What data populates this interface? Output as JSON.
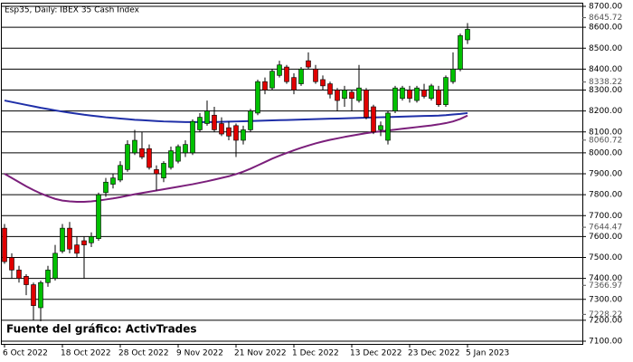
{
  "chart_data": {
    "type": "candlestick",
    "title": "Esp35, Daily:  IBEX 35 Cash Index",
    "annotation": "Fuente del gráfico: ActivTrades",
    "categories": [
      "6 Oct 2022",
      null,
      null,
      null,
      null,
      null,
      null,
      null,
      "18 Oct 2022",
      null,
      null,
      null,
      null,
      null,
      null,
      null,
      "28 Oct 2022",
      null,
      null,
      null,
      null,
      null,
      null,
      null,
      "9 Nov 2022",
      null,
      null,
      null,
      null,
      null,
      null,
      null,
      "21 Nov 2022",
      null,
      null,
      null,
      null,
      null,
      null,
      null,
      "1 Dec 2022",
      null,
      null,
      null,
      null,
      null,
      null,
      null,
      "13 Dec 2022",
      null,
      null,
      null,
      null,
      null,
      null,
      null,
      "23 Dec 2022",
      null,
      null,
      null,
      null,
      null,
      null,
      null,
      "5 Jan 2023"
    ],
    "open": [
      7640,
      7500,
      7440,
      7410,
      7370,
      7260,
      7380,
      7400,
      7530,
      7640,
      7560,
      7580,
      7570,
      7590,
      7810,
      7850,
      7870,
      7920,
      8000,
      8020,
      8020,
      7920,
      7880,
      7930,
      7960,
      8000,
      8000,
      8110,
      8140,
      8180,
      8140,
      8120,
      8130,
      8060,
      8110,
      8190,
      8340,
      8310,
      8370,
      8410,
      8360,
      8330,
      8440,
      8400,
      8350,
      8330,
      8300,
      8260,
      8290,
      8250,
      8300,
      8220,
      8110,
      8060,
      8200,
      8260,
      8300,
      8250,
      8300,
      8260,
      8300,
      8230,
      8340,
      8400,
      8540
    ],
    "high": [
      7660,
      7520,
      7460,
      7420,
      7380,
      7390,
      7460,
      7560,
      7660,
      7670,
      7600,
      7600,
      7620,
      7810,
      7880,
      7900,
      7960,
      8060,
      8110,
      8100,
      8040,
      7940,
      7960,
      8030,
      8040,
      8060,
      8160,
      8190,
      8250,
      8220,
      8170,
      8150,
      8140,
      8130,
      8210,
      8350,
      8360,
      8400,
      8440,
      8420,
      8380,
      8410,
      8480,
      8420,
      8370,
      8340,
      8310,
      8320,
      8300,
      8420,
      8310,
      8230,
      8150,
      8200,
      8320,
      8320,
      8320,
      8320,
      8330,
      8330,
      8320,
      8370,
      8480,
      8570,
      8620
    ],
    "low": [
      7470,
      7400,
      7380,
      7320,
      7200,
      7190,
      7360,
      7390,
      7520,
      7520,
      7500,
      7400,
      7550,
      7580,
      7790,
      7830,
      7860,
      7910,
      7990,
      7970,
      7920,
      7820,
      7860,
      7920,
      7950,
      7980,
      7990,
      8100,
      8130,
      8100,
      8080,
      8060,
      7980,
      8040,
      8100,
      8180,
      8280,
      8300,
      8360,
      8330,
      8280,
      8320,
      8400,
      8330,
      8300,
      8260,
      8200,
      8220,
      8200,
      8240,
      8160,
      8090,
      8080,
      8040,
      8190,
      8250,
      8240,
      8240,
      8260,
      8250,
      8220,
      8220,
      8330,
      8390,
      8520
    ],
    "close": [
      7480,
      7440,
      7400,
      7370,
      7270,
      7380,
      7440,
      7520,
      7640,
      7540,
      7520,
      7560,
      7600,
      7800,
      7860,
      7880,
      7940,
      8040,
      8060,
      7980,
      7930,
      7900,
      7950,
      8010,
      8030,
      8040,
      8150,
      8170,
      8200,
      8110,
      8090,
      8080,
      8060,
      8110,
      8200,
      8340,
      8300,
      8390,
      8420,
      8340,
      8300,
      8400,
      8410,
      8340,
      8320,
      8280,
      8250,
      8300,
      8260,
      8310,
      8170,
      8100,
      8130,
      8190,
      8310,
      8310,
      8260,
      8310,
      8270,
      8320,
      8230,
      8360,
      8400,
      8560,
      8590
    ],
    "up_color": "#00c000",
    "down_color": "#e00000",
    "lines": [
      {
        "color": "#1f2fa8",
        "values": [
          8250,
          8243,
          8236,
          8229,
          8222,
          8215,
          8209,
          8203,
          8197,
          8192,
          8187,
          8182,
          8178,
          8174,
          8170,
          8167,
          8164,
          8161,
          8158,
          8156,
          8154,
          8152,
          8150,
          8149,
          8148,
          8147,
          8147,
          8147,
          8147,
          8147,
          8148,
          8149,
          8150,
          8151,
          8152,
          8153,
          8154,
          8155,
          8156,
          8157,
          8158,
          8159,
          8160,
          8161,
          8162,
          8163,
          8164,
          8165,
          8166,
          8167,
          8168,
          8169,
          8170,
          8171,
          8172,
          8173,
          8174,
          8175,
          8176,
          8177,
          8178,
          8180,
          8183,
          8186,
          8190
        ]
      },
      {
        "color": "#7b1f7b",
        "values": [
          7900,
          7880,
          7860,
          7840,
          7822,
          7806,
          7792,
          7780,
          7772,
          7768,
          7766,
          7766,
          7768,
          7772,
          7777,
          7782,
          7788,
          7795,
          7802,
          7808,
          7814,
          7820,
          7826,
          7832,
          7838,
          7844,
          7850,
          7857,
          7864,
          7872,
          7880,
          7888,
          7898,
          7910,
          7924,
          7940,
          7956,
          7972,
          7986,
          7999,
          8012,
          8024,
          8035,
          8045,
          8054,
          8062,
          8069,
          8076,
          8082,
          8088,
          8094,
          8099,
          8103,
          8107,
          8111,
          8115,
          8119,
          8123,
          8127,
          8131,
          8136,
          8142,
          8150,
          8162,
          8178
        ]
      }
    ],
    "ylim": [
      7100,
      8700
    ],
    "yticks": [
      {
        "value": 8700,
        "label": "8700.00"
      },
      {
        "value": 8600,
        "label": "8600.00"
      },
      {
        "value": 8500,
        "label": "8500.00"
      },
      {
        "value": 8400,
        "label": "8400.00"
      },
      {
        "value": 8300,
        "label": "8300.00"
      },
      {
        "value": 8200,
        "label": "8200.00"
      },
      {
        "value": 8100,
        "label": "8100.00"
      },
      {
        "value": 8000,
        "label": "8000.00"
      },
      {
        "value": 7900,
        "label": "7900.00"
      },
      {
        "value": 7800,
        "label": "7800.00"
      },
      {
        "value": 7700,
        "label": "7700.00"
      },
      {
        "value": 7600,
        "label": "7600.00"
      },
      {
        "value": 7500,
        "label": "7500.00"
      },
      {
        "value": 7400,
        "label": "7400.00"
      },
      {
        "value": 7300,
        "label": "7300.00"
      },
      {
        "value": 7200,
        "label": "7200.00"
      },
      {
        "value": 7100,
        "label": "7100.00"
      }
    ],
    "price_levels": [
      8645.72,
      8338.22,
      8060.72,
      7644.47,
      7366.97,
      7228.22
    ],
    "grid": true
  }
}
